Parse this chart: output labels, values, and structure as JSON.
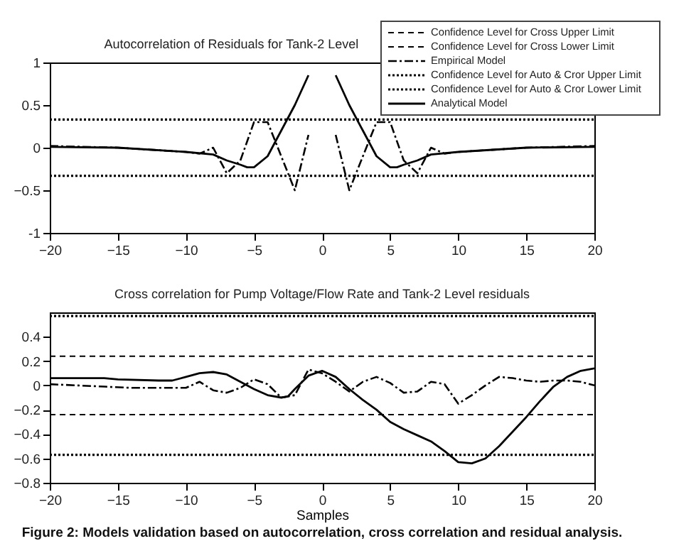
{
  "chart_data": [
    {
      "type": "line",
      "title": "Autocorrelation of Residuals for Tank-2 Level",
      "xlim": [
        -20,
        20
      ],
      "xticks": [
        -20,
        -15,
        -10,
        -5,
        0,
        5,
        10,
        15,
        20
      ],
      "ylim": [
        -1,
        1
      ],
      "yticks": [
        {
          "value": -1,
          "label": "-1"
        },
        -0.5,
        0,
        0.5,
        {
          "value": 1,
          "label": "1"
        }
      ],
      "grid": false,
      "marker": "none",
      "series": [
        {
          "color": "#000000",
          "line_style": "dotted",
          "x": [
            -20,
            20
          ],
          "values": [
            0.33,
            0.33
          ]
        },
        {
          "color": "#000000",
          "line_style": "dotted",
          "x": [
            -20,
            20
          ],
          "values": [
            -0.33,
            -0.33
          ]
        },
        {
          "color": "#000000",
          "line_style": "dashdot",
          "x": [
            -20,
            -15,
            -10,
            -9,
            -8,
            -7,
            -6,
            -5,
            -4,
            -3,
            -2,
            -1,
            0,
            1,
            2,
            3,
            4,
            5,
            6,
            7,
            8,
            9,
            10,
            15,
            20
          ],
          "values": [
            0.02,
            0,
            -0.05,
            -0.07,
            0,
            -0.3,
            -0.15,
            0.3,
            0.3,
            -0.1,
            -0.5,
            0.15,
            null,
            0.15,
            -0.5,
            -0.1,
            0.3,
            0.3,
            -0.15,
            -0.3,
            0,
            -0.07,
            -0.05,
            0,
            0.02
          ]
        },
        {
          "color": "#000000",
          "line_style": "solid",
          "x": [
            -20,
            -15,
            -10,
            -8,
            -7,
            -6,
            -5.5,
            -5,
            -4,
            -3,
            -2,
            -1,
            0,
            1,
            2,
            3,
            4,
            5,
            5.5,
            6,
            7,
            8,
            10,
            15,
            20
          ],
          "values": [
            0.01,
            0,
            -0.05,
            -0.08,
            -0.15,
            -0.2,
            -0.23,
            -0.23,
            -0.1,
            0.2,
            0.5,
            0.85,
            null,
            0.85,
            0.5,
            0.2,
            -0.1,
            -0.23,
            -0.23,
            -0.2,
            -0.15,
            -0.08,
            -0.05,
            0,
            0.01
          ]
        }
      ]
    },
    {
      "type": "line",
      "title": "Cross correlation for Pump Voltage/Flow Rate and Tank-2 Level residuals",
      "xlabel": "Samples",
      "xlim": [
        -20,
        20
      ],
      "xticks": [
        -20,
        -15,
        -10,
        -5,
        0,
        5,
        10,
        15,
        20
      ],
      "ylim": [
        -0.8,
        0.6
      ],
      "yticks": [
        -0.8,
        -0.6,
        -0.4,
        -0.2,
        0,
        0.2,
        0.4
      ],
      "grid": false,
      "marker": "none",
      "legend": "top right",
      "annotations": [
        "Figure 2: Models  validation based on autocorrelation, cross correlation and residual analysis."
      ],
      "series": [
        {
          "name": "Confidence Level for Cross Upper Limit",
          "color": "#000000",
          "line_style": "dashed",
          "x": [
            -20,
            20
          ],
          "values": [
            0.24,
            0.24
          ]
        },
        {
          "name": "Confidence Level for Cross Lower Limit",
          "color": "#000000",
          "line_style": "dashed",
          "x": [
            -20,
            20
          ],
          "values": [
            -0.24,
            -0.24
          ]
        },
        {
          "name": "Empirical Model",
          "color": "#000000",
          "line_style": "dashdot",
          "x": [
            -20,
            -16,
            -14,
            -10,
            -9,
            -8,
            -7,
            -6,
            -5,
            -4,
            -3,
            -2,
            -1,
            0,
            1,
            2,
            3,
            4,
            5,
            6,
            7,
            8,
            9,
            10,
            11,
            12,
            13,
            14,
            15,
            16,
            17,
            18,
            19,
            20
          ],
          "values": [
            0.01,
            -0.01,
            -0.02,
            -0.02,
            0.03,
            -0.04,
            -0.06,
            -0.02,
            0.05,
            0.01,
            -0.1,
            -0.08,
            0.13,
            0.1,
            0.03,
            -0.05,
            0.03,
            0.07,
            0.02,
            -0.06,
            -0.05,
            0.03,
            0.01,
            -0.15,
            -0.08,
            0,
            0.07,
            0.06,
            0.04,
            0.03,
            0.04,
            0.04,
            0.03,
            0
          ]
        },
        {
          "name": "Confidence Level for Auto & Cror Upper Limit",
          "color": "#000000",
          "line_style": "dotted",
          "x": [
            -20,
            20
          ],
          "values": [
            0.57,
            0.57
          ]
        },
        {
          "name": "Confidence Level for Auto & Cror Lower Limit",
          "color": "#000000",
          "line_style": "dotted",
          "x": [
            -20,
            20
          ],
          "values": [
            -0.57,
            -0.57
          ]
        },
        {
          "name": "Analytical Model",
          "color": "#000000",
          "line_style": "solid",
          "x": [
            -20,
            -16,
            -15,
            -12,
            -11,
            -10,
            -9,
            -8,
            -7,
            -6,
            -5,
            -4,
            -3,
            -2.5,
            -2,
            -1,
            0,
            1,
            2,
            3,
            4,
            5,
            6,
            7,
            8,
            9,
            10,
            11,
            12,
            13,
            14,
            15,
            16,
            17,
            18,
            19,
            20
          ],
          "values": [
            0.06,
            0.06,
            0.05,
            0.04,
            0.04,
            0.07,
            0.1,
            0.11,
            0.09,
            0.03,
            -0.03,
            -0.08,
            -0.1,
            -0.09,
            -0.03,
            0.08,
            0.12,
            0.07,
            -0.03,
            -0.12,
            -0.2,
            -0.3,
            -0.36,
            -0.41,
            -0.46,
            -0.54,
            -0.63,
            -0.64,
            -0.6,
            -0.5,
            -0.38,
            -0.26,
            -0.13,
            -0.01,
            0.07,
            0.12,
            0.14
          ]
        }
      ]
    }
  ]
}
